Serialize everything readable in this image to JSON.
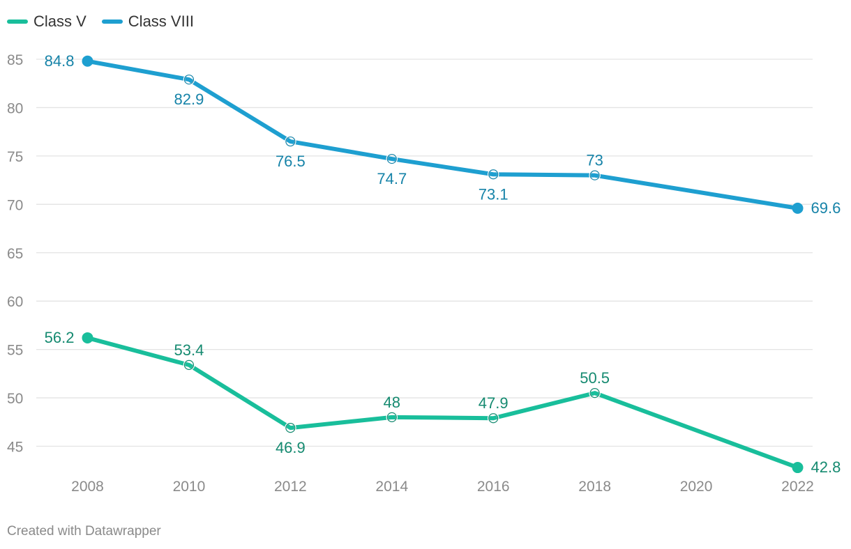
{
  "colors": {
    "class_v": "#19be9b",
    "class_viii": "#1e9fd0",
    "class_v_label": "#158a70",
    "class_viii_label": "#1683a8",
    "grid": "#e3e3e3",
    "tick": "#8a8a8a"
  },
  "legend": [
    {
      "name": "Class V",
      "color": "#19be9b"
    },
    {
      "name": "Class VIII",
      "color": "#1e9fd0"
    }
  ],
  "footer": "Created with Datawrapper",
  "chart_data": {
    "type": "line",
    "title": "",
    "xlabel": "",
    "ylabel": "",
    "x": [
      2008,
      2010,
      2012,
      2014,
      2016,
      2018,
      2022
    ],
    "x_ticks": [
      "2008",
      "2010",
      "2012",
      "2014",
      "2016",
      "2018",
      "2020",
      "2022"
    ],
    "y_ticks": [
      "45",
      "50",
      "55",
      "60",
      "65",
      "70",
      "75",
      "80",
      "85"
    ],
    "xlim": [
      2008,
      2022
    ],
    "ylim": [
      42.8,
      85
    ],
    "grid": true,
    "legend_position": "top-left",
    "series": [
      {
        "name": "Class VIII",
        "values": [
          84.8,
          82.9,
          76.5,
          74.7,
          73.1,
          73,
          69.6
        ],
        "labels": [
          "84.8",
          "82.9",
          "76.5",
          "74.7",
          "73.1",
          "73",
          "69.6"
        ],
        "label_placement": [
          "left",
          "below",
          "below",
          "below",
          "below",
          "above",
          "right"
        ]
      },
      {
        "name": "Class V",
        "values": [
          56.2,
          53.4,
          46.9,
          48,
          47.9,
          50.5,
          42.8
        ],
        "labels": [
          "56.2",
          "53.4",
          "46.9",
          "48",
          "47.9",
          "50.5",
          "42.8"
        ],
        "label_placement": [
          "left",
          "above",
          "below",
          "above",
          "above",
          "above",
          "right"
        ]
      }
    ]
  }
}
